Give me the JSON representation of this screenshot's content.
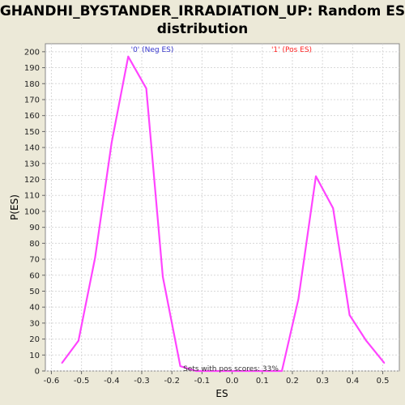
{
  "chart_data": {
    "type": "line",
    "title_line1": "GHANDHI_BYSTANDER_IRRADIATION_UP: Random ES",
    "title_line2": "distribution",
    "xlabel": "ES",
    "ylabel": "P(ES)",
    "xlim": [
      -0.62,
      0.555
    ],
    "ylim": [
      0,
      205
    ],
    "x_ticks": [
      "-0.6",
      "-0.5",
      "-0.4",
      "-0.3",
      "-0.2",
      "-0.1",
      "0.0",
      "0.1",
      "0.2",
      "0.3",
      "0.4",
      "0.5"
    ],
    "y_ticks": [
      "0",
      "10",
      "20",
      "30",
      "40",
      "50",
      "60",
      "70",
      "80",
      "90",
      "100",
      "110",
      "120",
      "130",
      "140",
      "150",
      "160",
      "170",
      "180",
      "190",
      "200"
    ],
    "grid": true,
    "series": [
      {
        "color": "#ff44ff",
        "x": [
          -0.565,
          -0.51,
          -0.455,
          -0.4,
          -0.345,
          -0.285,
          -0.23,
          -0.172,
          -0.12,
          -0.06,
          0.0,
          0.06,
          0.12,
          0.165,
          0.22,
          0.278,
          0.335,
          0.39,
          0.445,
          0.505
        ],
        "y": [
          5,
          19,
          71,
          143,
          197,
          177,
          59,
          3,
          0,
          0,
          0,
          0,
          0,
          0,
          45,
          122,
          102,
          35,
          19,
          5
        ]
      }
    ],
    "annotations": {
      "neg_label": "'0' (Neg ES)",
      "neg_color": "#3333cc",
      "pos_label": "'1' (Pos ES)",
      "pos_color": "#ff2222",
      "pos_scores": "Sets with pos scores: 33%"
    }
  }
}
